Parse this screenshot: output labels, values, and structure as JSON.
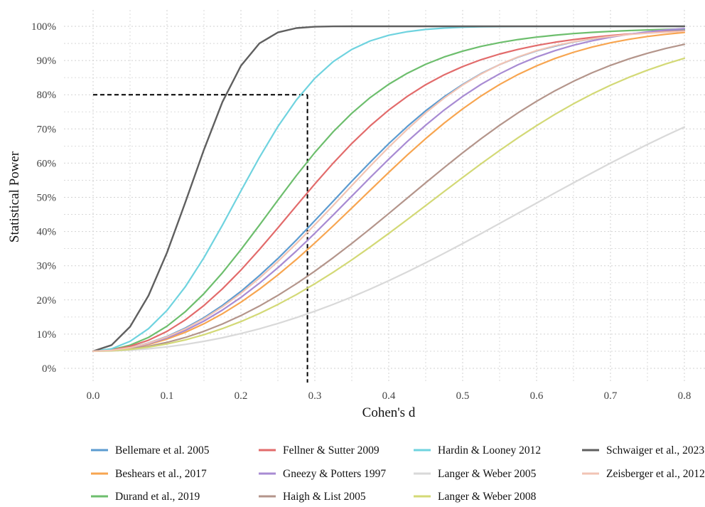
{
  "chart_data": {
    "type": "line",
    "title": "",
    "xlabel": "Cohen's d",
    "ylabel": "Statistical Power",
    "xlim": [
      0,
      0.8
    ],
    "ylim": [
      0,
      1
    ],
    "x_ticks": [
      "0.0",
      "0.1",
      "0.2",
      "0.3",
      "0.4",
      "0.5",
      "0.6",
      "0.7",
      "0.8"
    ],
    "y_ticks": [
      "0%",
      "10%",
      "20%",
      "30%",
      "40%",
      "50%",
      "60%",
      "70%",
      "80%",
      "90%",
      "100%"
    ],
    "grid": true,
    "legend_position": "bottom",
    "x": [
      0.0,
      0.025,
      0.05,
      0.075,
      0.1,
      0.125,
      0.15,
      0.175,
      0.2,
      0.225,
      0.25,
      0.275,
      0.3,
      0.325,
      0.35,
      0.375,
      0.4,
      0.425,
      0.45,
      0.475,
      0.5,
      0.525,
      0.55,
      0.575,
      0.6,
      0.625,
      0.65,
      0.675,
      0.7,
      0.725,
      0.75,
      0.775,
      0.8
    ],
    "reference": {
      "x": 0.29,
      "power": 0.8
    },
    "series": [
      {
        "name": "Bellemare et al. 2005",
        "color": "#5B9BD0",
        "values": [
          0.05,
          0.0527,
          0.0607,
          0.0742,
          0.0932,
          0.118,
          0.148,
          0.184,
          0.225,
          0.271,
          0.321,
          0.375,
          0.432,
          0.489,
          0.547,
          0.603,
          0.657,
          0.707,
          0.753,
          0.794,
          0.83,
          0.862,
          0.888,
          0.91,
          0.928,
          0.942,
          0.954,
          0.963,
          0.971,
          0.977,
          0.982,
          0.986,
          0.989
        ]
      },
      {
        "name": "Beshears et al., 2017",
        "color": "#F7A550",
        "values": [
          0.05,
          0.0522,
          0.0588,
          0.0698,
          0.0854,
          0.1056,
          0.1304,
          0.1597,
          0.1934,
          0.2313,
          0.2731,
          0.3183,
          0.3665,
          0.4169,
          0.4687,
          0.5211,
          0.573,
          0.6235,
          0.6718,
          0.717,
          0.7587,
          0.7965,
          0.8299,
          0.8592,
          0.8845,
          0.9061,
          0.9242,
          0.9393,
          0.9518,
          0.962,
          0.9702,
          0.9768,
          0.9821
        ]
      },
      {
        "name": "Durand et al., 2019",
        "color": "#6DBE6D",
        "values": [
          0.05,
          0.0544,
          0.0678,
          0.0905,
          0.1233,
          0.1661,
          0.2185,
          0.2794,
          0.3469,
          0.4186,
          0.4917,
          0.5635,
          0.631,
          0.692,
          0.7457,
          0.7918,
          0.8305,
          0.8626,
          0.889,
          0.9103,
          0.9275,
          0.9413,
          0.9524,
          0.9613,
          0.9684,
          0.9741,
          0.9787,
          0.9823,
          0.9852,
          0.9876,
          0.9895,
          0.9911,
          0.9924
        ]
      },
      {
        "name": "Fellner & Sutter 2009",
        "color": "#E26B6B",
        "values": [
          0.05,
          0.0535,
          0.0642,
          0.0823,
          0.1082,
          0.1421,
          0.1837,
          0.2325,
          0.2874,
          0.3474,
          0.4106,
          0.4752,
          0.5391,
          0.6004,
          0.6574,
          0.7092,
          0.7551,
          0.795,
          0.8293,
          0.8582,
          0.8823,
          0.9024,
          0.919,
          0.9327,
          0.9441,
          0.9534,
          0.9612,
          0.9676,
          0.973,
          0.9774,
          0.9811,
          0.9842,
          0.9867
        ]
      },
      {
        "name": "Gneezy & Potters 1997",
        "color": "#A88BD3",
        "values": [
          0.05,
          0.0524,
          0.0597,
          0.0717,
          0.0889,
          0.111,
          0.1383,
          0.1705,
          0.2074,
          0.2488,
          0.2942,
          0.3431,
          0.3949,
          0.4487,
          0.5035,
          0.5582,
          0.6117,
          0.663,
          0.7111,
          0.7553,
          0.7951,
          0.8304,
          0.8612,
          0.8877,
          0.9102,
          0.929,
          0.9446,
          0.9575,
          0.9681,
          0.9768,
          0.9838,
          0.9893,
          0.9933
        ]
      },
      {
        "name": "Haigh & List 2005",
        "color": "#B4958B",
        "values": [
          0.05,
          0.0516,
          0.0564,
          0.0645,
          0.0758,
          0.0904,
          0.1084,
          0.1297,
          0.1543,
          0.1822,
          0.2133,
          0.2473,
          0.2842,
          0.3236,
          0.3651,
          0.4083,
          0.4527,
          0.4977,
          0.5427,
          0.587,
          0.6301,
          0.6715,
          0.7106,
          0.7471,
          0.7808,
          0.8116,
          0.8393,
          0.864,
          0.8858,
          0.9048,
          0.9212,
          0.9353,
          0.9473
        ]
      },
      {
        "name": "Hardin & Looney 2012",
        "color": "#6FD3DF",
        "values": [
          0.05,
          0.0571,
          0.0789,
          0.116,
          0.1694,
          0.2392,
          0.3236,
          0.4187,
          0.5187,
          0.6167,
          0.7068,
          0.7846,
          0.848,
          0.8969,
          0.9325,
          0.9573,
          0.9738,
          0.9843,
          0.9909,
          0.9949,
          0.9972,
          0.9985,
          0.9992,
          0.9996,
          0.9998,
          0.9999,
          1.0,
          1.0,
          1.0,
          1.0,
          1.0,
          1.0,
          1.0
        ]
      },
      {
        "name": "Langer & Weber 2005",
        "color": "#D9D9D9",
        "values": [
          0.05,
          0.0508,
          0.0532,
          0.0572,
          0.0628,
          0.07,
          0.0789,
          0.0895,
          0.1017,
          0.1156,
          0.1311,
          0.1482,
          0.1669,
          0.1871,
          0.2088,
          0.2319,
          0.2564,
          0.282,
          0.3087,
          0.3364,
          0.3649,
          0.394,
          0.4236,
          0.4534,
          0.4832,
          0.513,
          0.5425,
          0.5715,
          0.6,
          0.6277,
          0.6546,
          0.6806,
          0.7056
        ]
      },
      {
        "name": "Langer & Weber 2008",
        "color": "#D3D976",
        "values": [
          0.05,
          0.0513,
          0.0553,
          0.0619,
          0.0713,
          0.0834,
          0.0984,
          0.1162,
          0.1368,
          0.1603,
          0.1866,
          0.2155,
          0.2471,
          0.281,
          0.3171,
          0.355,
          0.3944,
          0.4348,
          0.4759,
          0.5171,
          0.558,
          0.5981,
          0.637,
          0.6743,
          0.7096,
          0.7428,
          0.7736,
          0.8019,
          0.8277,
          0.851,
          0.8718,
          0.8903,
          0.9066
        ]
      },
      {
        "name": "Schwaiger et al., 2023",
        "color": "#5F5F5F",
        "values": [
          0.05,
          0.0679,
          0.1216,
          0.2129,
          0.3385,
          0.4866,
          0.6396,
          0.7789,
          0.8846,
          0.9502,
          0.9822,
          0.9948,
          0.9987,
          0.9997,
          1.0,
          1.0,
          1.0,
          1.0,
          1.0,
          1.0,
          1.0,
          1.0,
          1.0,
          1.0,
          1.0,
          1.0,
          1.0,
          1.0,
          1.0,
          1.0,
          1.0,
          1.0,
          1.0
        ]
      },
      {
        "name": "Zeisberger et al., 2012",
        "color": "#F2C4B4",
        "values": [
          0.05,
          0.0526,
          0.0604,
          0.0735,
          0.092,
          0.1159,
          0.1452,
          0.1798,
          0.2195,
          0.2639,
          0.3125,
          0.3648,
          0.4199,
          0.4768,
          0.5344,
          0.5914,
          0.6466,
          0.6988,
          0.7469,
          0.7902,
          0.8282,
          0.8608,
          0.8882,
          0.9107,
          0.9288,
          0.9433,
          0.9547,
          0.9637,
          0.9706,
          0.976,
          0.9801,
          0.9832,
          0.9856
        ]
      }
    ]
  }
}
